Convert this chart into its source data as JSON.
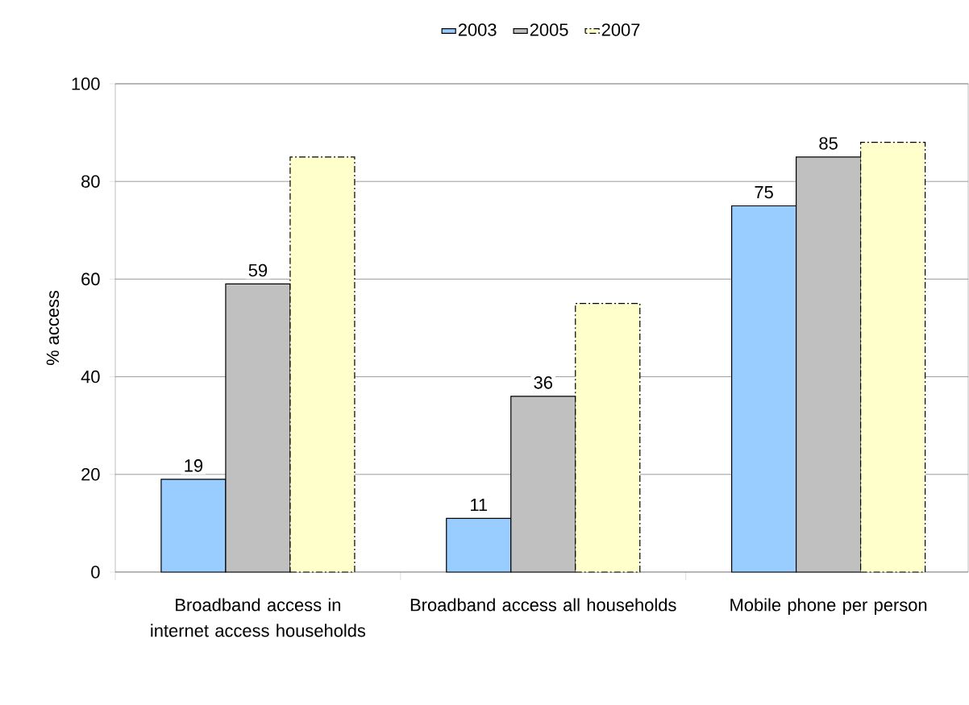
{
  "chart_data": {
    "type": "bar",
    "categories": [
      "Broadband access in internet access households",
      "Broadband access all households",
      "Mobile phone per person"
    ],
    "series": [
      {
        "name": "2003",
        "color": "#99ccff",
        "values": [
          19,
          11,
          75
        ],
        "value_labels": [
          "19",
          "11",
          "75"
        ]
      },
      {
        "name": "2005",
        "color": "#c0c0c0",
        "values": [
          59,
          36,
          85
        ],
        "value_labels": [
          "59",
          "36",
          "85"
        ]
      },
      {
        "name": "2007",
        "color": "#ffffcc",
        "values": [
          85,
          55,
          88
        ],
        "line_style": "dashed"
      }
    ],
    "ylabel": "% access",
    "ylim": [
      0,
      100
    ],
    "yticks": [
      0,
      20,
      40,
      60,
      80,
      100
    ],
    "grid": "y",
    "legend": "top"
  }
}
